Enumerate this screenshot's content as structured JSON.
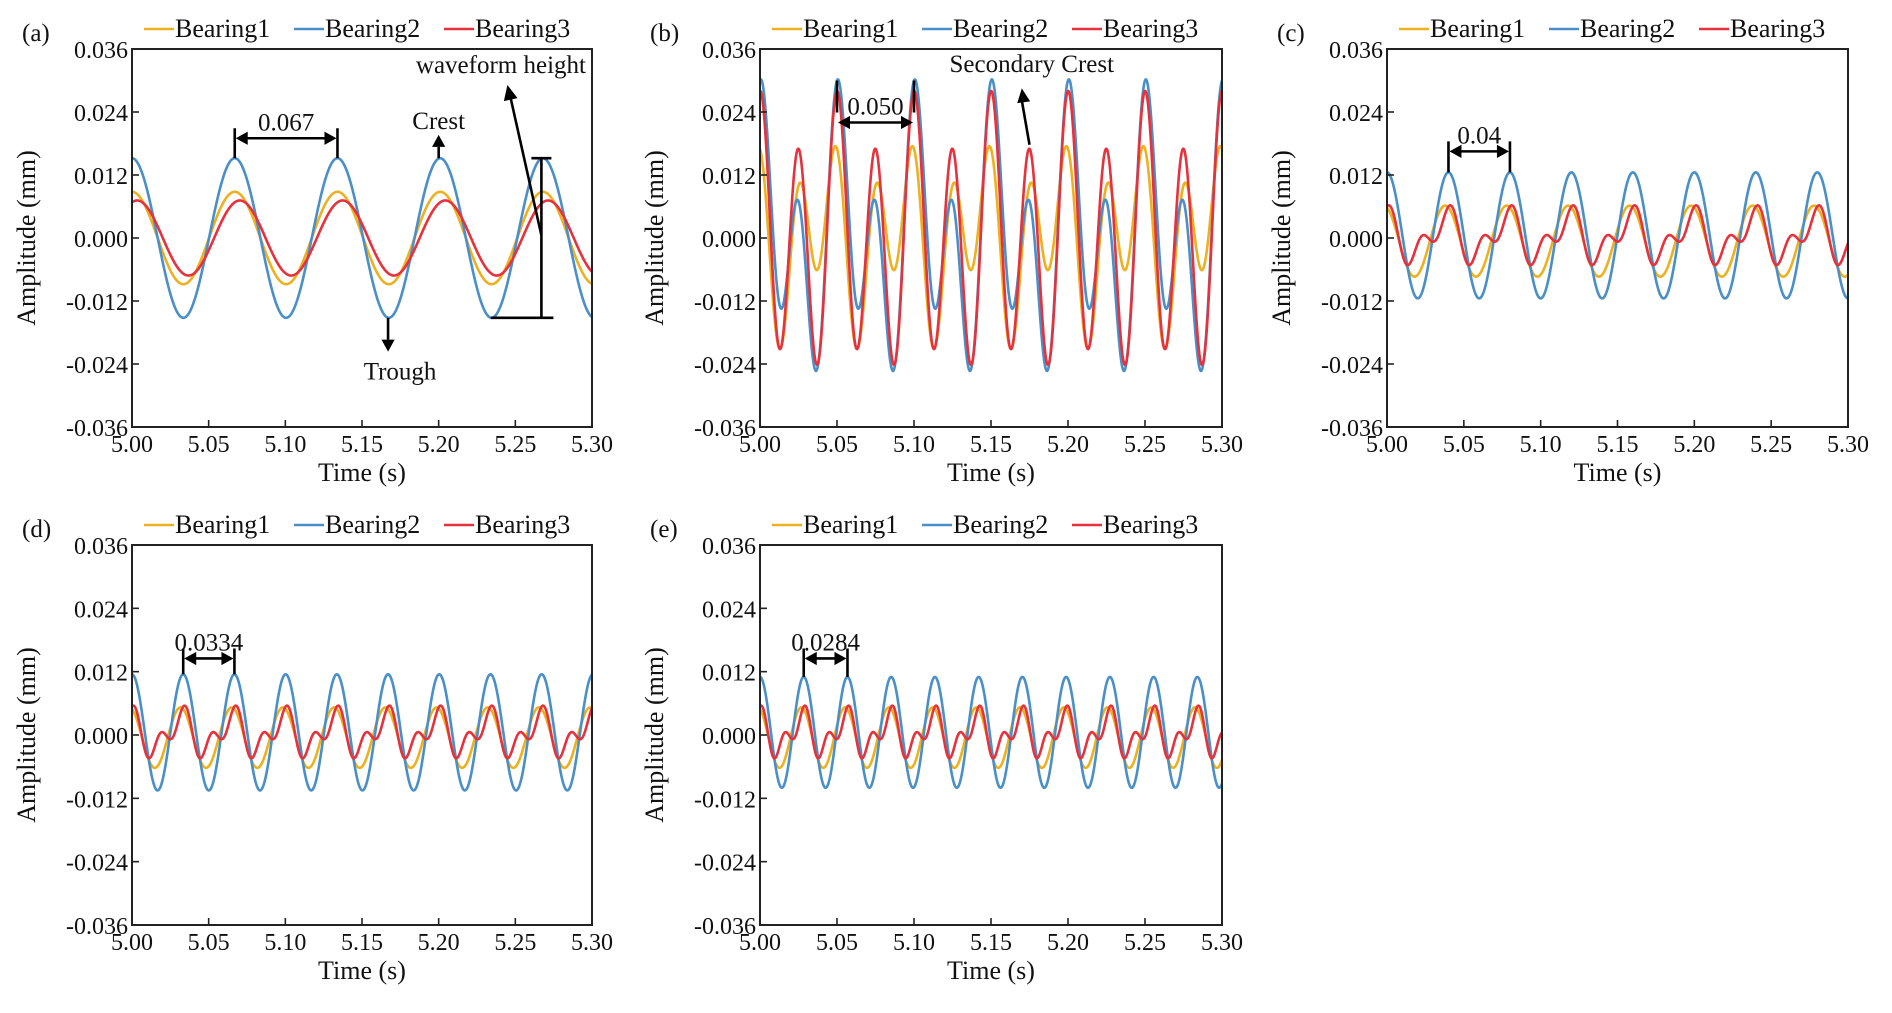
{
  "figure": {
    "colors": {
      "Bearing1": "#EDB120",
      "Bearing2": "#4A8FC7",
      "Bearing3": "#E5323C",
      "annotation": "#000000"
    }
  },
  "chart_data": [
    {
      "id": "a",
      "type": "line",
      "panel_label": "(a)",
      "title": "",
      "xlabel": "Time (s)",
      "ylabel": "Amplitude (mm)",
      "xlim": [
        5.0,
        5.3
      ],
      "ylim": [
        -0.036,
        0.036
      ],
      "xticks": [
        "5.00",
        "5.05",
        "5.10",
        "5.15",
        "5.20",
        "5.25",
        "5.30"
      ],
      "xtick_values": [
        5.0,
        5.05,
        5.1,
        5.15,
        5.2,
        5.25,
        5.3
      ],
      "yticks": [
        "0.036",
        "0.024",
        "0.012",
        "0.000",
        "-0.012",
        "-0.024",
        "-0.036"
      ],
      "ytick_values": [
        0.036,
        0.024,
        0.012,
        0.0,
        -0.012,
        -0.024,
        -0.036
      ],
      "grid": false,
      "legend": {
        "position": "top",
        "entries": [
          "Bearing1",
          "Bearing2",
          "Bearing3"
        ]
      },
      "period_s": 0.067,
      "series": [
        {
          "name": "Bearing1",
          "offset": 0.0,
          "harmonics": [
            {
              "k": 1,
              "a": 0.0088,
              "b": 0.0
            }
          ],
          "peak": 0.0088,
          "trough": -0.0088
        },
        {
          "name": "Bearing2",
          "offset": 0.0,
          "harmonics": [
            {
              "k": 1,
              "a": 0.0152,
              "b": 0.0
            }
          ],
          "peak": 0.0152,
          "trough": -0.0152
        },
        {
          "name": "Bearing3",
          "offset": 0.0,
          "harmonics": [
            {
              "k": 1,
              "a": 0.0068,
              "b": 0.0022
            }
          ],
          "peak": 0.0072,
          "trough": -0.0072
        }
      ],
      "annotations": {
        "period": {
          "label": "0.067",
          "x_start": 5.067,
          "x_end": 5.134,
          "y": 0.019
        },
        "crest": {
          "label": "Crest",
          "x": 5.2,
          "y_from": 0.0152,
          "y_to": 0.0185
        },
        "trough": {
          "label": "Trough",
          "x": 5.167,
          "y_from": -0.0152,
          "y_to": -0.0205
        },
        "waveform_height": {
          "label": "waveform height",
          "x": 5.267,
          "y_top": 0.0152,
          "y_bottom": -0.0152
        }
      }
    },
    {
      "id": "b",
      "type": "line",
      "panel_label": "(b)",
      "title": "",
      "xlabel": "Time (s)",
      "ylabel": "Amplitude (mm)",
      "xlim": [
        5.0,
        5.3
      ],
      "ylim": [
        -0.036,
        0.036
      ],
      "xticks": [
        "5.00",
        "5.05",
        "5.10",
        "5.15",
        "5.20",
        "5.25",
        "5.30"
      ],
      "xtick_values": [
        5.0,
        5.05,
        5.1,
        5.15,
        5.2,
        5.25,
        5.3
      ],
      "yticks": [
        "0.036",
        "0.024",
        "0.012",
        "0.000",
        "-0.012",
        "-0.024",
        "-0.036"
      ],
      "ytick_values": [
        0.036,
        0.024,
        0.012,
        0.0,
        -0.012,
        -0.024,
        -0.036
      ],
      "grid": false,
      "legend": {
        "position": "top",
        "entries": [
          "Bearing1",
          "Bearing2",
          "Bearing3"
        ]
      },
      "period_s": 0.05,
      "series": [
        {
          "name": "Bearing1",
          "offset": 0.0,
          "harmonics": [
            {
              "k": 1,
              "a": 0.0035,
              "b": -0.0075
            },
            {
              "k": 2,
              "a": 0.0135,
              "b": 0.0
            }
          ],
          "peak": 0.017,
          "trough": -0.021
        },
        {
          "name": "Bearing2",
          "offset": 0.0,
          "harmonics": [
            {
              "k": 1,
              "a": 0.0115,
              "b": 0.006
            },
            {
              "k": 2,
              "a": 0.0185,
              "b": 0.0
            }
          ],
          "peak": 0.03,
          "trough": -0.026
        },
        {
          "name": "Bearing3",
          "offset": 0.0,
          "harmonics": [
            {
              "k": 1,
              "a": 0.0055,
              "b": 0.0015
            },
            {
              "k": 2,
              "a": 0.0225,
              "b": 0.0
            }
          ],
          "peak": 0.028,
          "trough": -0.026
        }
      ],
      "annotations": {
        "period": {
          "label": "0.050",
          "x_start": 5.05,
          "x_end": 5.1,
          "y": 0.022
        },
        "secondary_crest": {
          "label": "Secondary Crest",
          "x_from": 5.175,
          "y_from": 0.017,
          "x_to": 5.17,
          "y_to": 0.0285
        }
      }
    },
    {
      "id": "c",
      "type": "line",
      "panel_label": "(c)",
      "title": "",
      "xlabel": "Time (s)",
      "ylabel": "Amplitude (mm)",
      "xlim": [
        5.0,
        5.3
      ],
      "ylim": [
        -0.036,
        0.036
      ],
      "xticks": [
        "5.00",
        "5.05",
        "5.10",
        "5.15",
        "5.20",
        "5.25",
        "5.30"
      ],
      "xtick_values": [
        5.0,
        5.05,
        5.1,
        5.15,
        5.2,
        5.25,
        5.3
      ],
      "yticks": [
        "0.036",
        "0.024",
        "0.012",
        "0.000",
        "-0.012",
        "-0.024",
        "-0.036"
      ],
      "ytick_values": [
        0.036,
        0.024,
        0.012,
        0.0,
        -0.012,
        -0.024,
        -0.036
      ],
      "grid": false,
      "legend": {
        "position": "top",
        "entries": [
          "Bearing1",
          "Bearing2",
          "Bearing3"
        ]
      },
      "period_s": 0.04,
      "series": [
        {
          "name": "Bearing1",
          "offset": -0.0006,
          "harmonics": [
            {
              "k": 1,
              "a": 0.0064,
              "b": -0.0022
            }
          ],
          "peak": 0.006,
          "trough": -0.0075
        },
        {
          "name": "Bearing2",
          "offset": 0.0005,
          "harmonics": [
            {
              "k": 1,
              "a": 0.012,
              "b": 0.0
            }
          ],
          "peak": 0.0125,
          "trough": -0.0115
        },
        {
          "name": "Bearing3",
          "offset": 0.0003,
          "harmonics": [
            {
              "k": 1,
              "a": 0.0035,
              "b": -0.0012
            },
            {
              "k": 2,
              "a": 0.0022,
              "b": 0.0018
            }
          ],
          "peak": 0.0065,
          "trough": -0.006
        }
      ],
      "annotations": {
        "period": {
          "label": "0.04",
          "x_start": 5.04,
          "x_end": 5.08,
          "y": 0.0165
        }
      }
    },
    {
      "id": "d",
      "type": "line",
      "panel_label": "(d)",
      "title": "",
      "xlabel": "Time (s)",
      "ylabel": "Amplitude (mm)",
      "xlim": [
        5.0,
        5.3
      ],
      "ylim": [
        -0.036,
        0.036
      ],
      "xticks": [
        "5.00",
        "5.05",
        "5.10",
        "5.15",
        "5.20",
        "5.25",
        "5.30"
      ],
      "xtick_values": [
        5.0,
        5.05,
        5.1,
        5.15,
        5.2,
        5.25,
        5.3
      ],
      "yticks": [
        "0.036",
        "0.024",
        "0.012",
        "0.000",
        "-0.012",
        "-0.024",
        "-0.036"
      ],
      "ytick_values": [
        0.036,
        0.024,
        0.012,
        0.0,
        -0.012,
        -0.024,
        -0.036
      ],
      "grid": false,
      "legend": {
        "position": "top",
        "entries": [
          "Bearing1",
          "Bearing2",
          "Bearing3"
        ]
      },
      "period_s": 0.0334,
      "series": [
        {
          "name": "Bearing1",
          "offset": -0.0005,
          "harmonics": [
            {
              "k": 1,
              "a": 0.0054,
              "b": -0.0019
            }
          ],
          "peak": 0.005,
          "trough": -0.006
        },
        {
          "name": "Bearing2",
          "offset": 0.0005,
          "harmonics": [
            {
              "k": 1,
              "a": 0.011,
              "b": 0.0
            }
          ],
          "peak": 0.0115,
          "trough": -0.0105
        },
        {
          "name": "Bearing3",
          "offset": 0.0003,
          "harmonics": [
            {
              "k": 1,
              "a": 0.003,
              "b": -0.001
            },
            {
              "k": 2,
              "a": 0.0021,
              "b": 0.0015
            }
          ],
          "peak": 0.0055,
          "trough": -0.0045
        }
      ],
      "annotations": {
        "period": {
          "label": "0.0334",
          "x_start": 5.0334,
          "x_end": 5.0668,
          "y": 0.0145
        }
      }
    },
    {
      "id": "e",
      "type": "line",
      "panel_label": "(e)",
      "title": "",
      "xlabel": "Time (s)",
      "ylabel": "Amplitude (mm)",
      "xlim": [
        5.0,
        5.3
      ],
      "ylim": [
        -0.036,
        0.036
      ],
      "xticks": [
        "5.00",
        "5.05",
        "5.10",
        "5.15",
        "5.20",
        "5.25",
        "5.30"
      ],
      "xtick_values": [
        5.0,
        5.05,
        5.1,
        5.15,
        5.2,
        5.25,
        5.3
      ],
      "yticks": [
        "0.036",
        "0.024",
        "0.012",
        "0.000",
        "-0.012",
        "-0.024",
        "-0.036"
      ],
      "ytick_values": [
        0.036,
        0.024,
        0.012,
        0.0,
        -0.012,
        -0.024,
        -0.036
      ],
      "grid": false,
      "legend": {
        "position": "top",
        "entries": [
          "Bearing1",
          "Bearing2",
          "Bearing3"
        ]
      },
      "period_s": 0.0284,
      "series": [
        {
          "name": "Bearing1",
          "offset": -0.0005,
          "harmonics": [
            {
              "k": 1,
              "a": 0.0054,
              "b": -0.0019
            }
          ],
          "peak": 0.005,
          "trough": -0.006
        },
        {
          "name": "Bearing2",
          "offset": 0.0005,
          "harmonics": [
            {
              "k": 1,
              "a": 0.0105,
              "b": 0.0
            }
          ],
          "peak": 0.011,
          "trough": -0.01
        },
        {
          "name": "Bearing3",
          "offset": 0.0003,
          "harmonics": [
            {
              "k": 1,
              "a": 0.003,
              "b": -0.001
            },
            {
              "k": 2,
              "a": 0.0021,
              "b": 0.0015
            }
          ],
          "peak": 0.0055,
          "trough": -0.0045
        }
      ],
      "annotations": {
        "period": {
          "label": "0.0284",
          "x_start": 5.0284,
          "x_end": 5.0568,
          "y": 0.0145
        }
      }
    }
  ]
}
